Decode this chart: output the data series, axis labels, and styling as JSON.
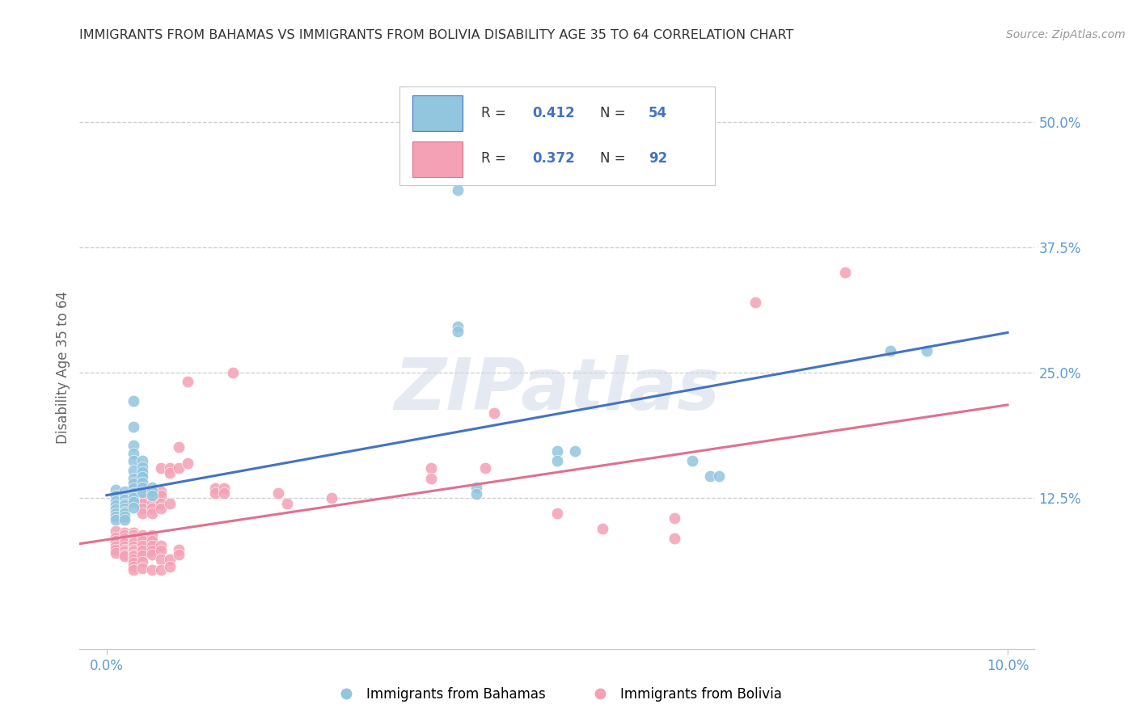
{
  "title": "IMMIGRANTS FROM BAHAMAS VS IMMIGRANTS FROM BOLIVIA DISABILITY AGE 35 TO 64 CORRELATION CHART",
  "source": "Source: ZipAtlas.com",
  "ylabel": "Disability Age 35 to 64",
  "bahamas_color": "#92c5de",
  "bolivia_color": "#f4a0b5",
  "bahamas_line_color": "#4472c4",
  "bolivia_line_color": "#e07090",
  "tick_color": "#5b9bd5",
  "bahamas_R": "0.412",
  "bahamas_N": "54",
  "bolivia_R": "0.372",
  "bolivia_N": "92",
  "bahamas_scatter": [
    [
      0.001,
      0.133
    ],
    [
      0.001,
      0.128
    ],
    [
      0.001,
      0.122
    ],
    [
      0.001,
      0.118
    ],
    [
      0.001,
      0.114
    ],
    [
      0.001,
      0.11
    ],
    [
      0.001,
      0.107
    ],
    [
      0.001,
      0.104
    ],
    [
      0.002,
      0.132
    ],
    [
      0.002,
      0.128
    ],
    [
      0.002,
      0.124
    ],
    [
      0.002,
      0.12
    ],
    [
      0.002,
      0.118
    ],
    [
      0.002,
      0.115
    ],
    [
      0.002,
      0.112
    ],
    [
      0.002,
      0.11
    ],
    [
      0.002,
      0.107
    ],
    [
      0.002,
      0.104
    ],
    [
      0.003,
      0.222
    ],
    [
      0.003,
      0.196
    ],
    [
      0.003,
      0.178
    ],
    [
      0.003,
      0.17
    ],
    [
      0.003,
      0.162
    ],
    [
      0.003,
      0.153
    ],
    [
      0.003,
      0.145
    ],
    [
      0.003,
      0.14
    ],
    [
      0.003,
      0.135
    ],
    [
      0.003,
      0.13
    ],
    [
      0.003,
      0.125
    ],
    [
      0.003,
      0.121
    ],
    [
      0.003,
      0.116
    ],
    [
      0.004,
      0.162
    ],
    [
      0.004,
      0.156
    ],
    [
      0.004,
      0.151
    ],
    [
      0.004,
      0.146
    ],
    [
      0.004,
      0.141
    ],
    [
      0.004,
      0.136
    ],
    [
      0.004,
      0.131
    ],
    [
      0.005,
      0.136
    ],
    [
      0.005,
      0.132
    ],
    [
      0.005,
      0.128
    ],
    [
      0.039,
      0.432
    ],
    [
      0.039,
      0.296
    ],
    [
      0.039,
      0.291
    ],
    [
      0.041,
      0.136
    ],
    [
      0.041,
      0.129
    ],
    [
      0.05,
      0.172
    ],
    [
      0.05,
      0.162
    ],
    [
      0.052,
      0.172
    ],
    [
      0.065,
      0.162
    ],
    [
      0.067,
      0.147
    ],
    [
      0.068,
      0.147
    ],
    [
      0.087,
      0.272
    ],
    [
      0.091,
      0.272
    ]
  ],
  "bolivia_scatter": [
    [
      0.001,
      0.092
    ],
    [
      0.001,
      0.086
    ],
    [
      0.001,
      0.083
    ],
    [
      0.001,
      0.08
    ],
    [
      0.001,
      0.077
    ],
    [
      0.001,
      0.074
    ],
    [
      0.001,
      0.071
    ],
    [
      0.002,
      0.091
    ],
    [
      0.002,
      0.088
    ],
    [
      0.002,
      0.085
    ],
    [
      0.002,
      0.082
    ],
    [
      0.002,
      0.08
    ],
    [
      0.002,
      0.077
    ],
    [
      0.002,
      0.074
    ],
    [
      0.002,
      0.072
    ],
    [
      0.002,
      0.069
    ],
    [
      0.002,
      0.067
    ],
    [
      0.003,
      0.091
    ],
    [
      0.003,
      0.088
    ],
    [
      0.003,
      0.085
    ],
    [
      0.003,
      0.082
    ],
    [
      0.003,
      0.08
    ],
    [
      0.003,
      0.077
    ],
    [
      0.003,
      0.074
    ],
    [
      0.003,
      0.072
    ],
    [
      0.003,
      0.069
    ],
    [
      0.003,
      0.067
    ],
    [
      0.003,
      0.064
    ],
    [
      0.003,
      0.061
    ],
    [
      0.003,
      0.057
    ],
    [
      0.003,
      0.054
    ],
    [
      0.004,
      0.136
    ],
    [
      0.004,
      0.13
    ],
    [
      0.004,
      0.125
    ],
    [
      0.004,
      0.12
    ],
    [
      0.004,
      0.115
    ],
    [
      0.004,
      0.11
    ],
    [
      0.004,
      0.088
    ],
    [
      0.004,
      0.083
    ],
    [
      0.004,
      0.078
    ],
    [
      0.004,
      0.073
    ],
    [
      0.004,
      0.068
    ],
    [
      0.004,
      0.062
    ],
    [
      0.004,
      0.055
    ],
    [
      0.005,
      0.132
    ],
    [
      0.005,
      0.12
    ],
    [
      0.005,
      0.115
    ],
    [
      0.005,
      0.11
    ],
    [
      0.005,
      0.088
    ],
    [
      0.005,
      0.083
    ],
    [
      0.005,
      0.078
    ],
    [
      0.005,
      0.073
    ],
    [
      0.005,
      0.069
    ],
    [
      0.005,
      0.054
    ],
    [
      0.006,
      0.155
    ],
    [
      0.006,
      0.132
    ],
    [
      0.006,
      0.128
    ],
    [
      0.006,
      0.12
    ],
    [
      0.006,
      0.115
    ],
    [
      0.006,
      0.078
    ],
    [
      0.006,
      0.073
    ],
    [
      0.006,
      0.064
    ],
    [
      0.006,
      0.054
    ],
    [
      0.007,
      0.155
    ],
    [
      0.007,
      0.15
    ],
    [
      0.007,
      0.12
    ],
    [
      0.007,
      0.064
    ],
    [
      0.007,
      0.057
    ],
    [
      0.008,
      0.176
    ],
    [
      0.008,
      0.155
    ],
    [
      0.008,
      0.074
    ],
    [
      0.008,
      0.069
    ],
    [
      0.009,
      0.241
    ],
    [
      0.009,
      0.16
    ],
    [
      0.012,
      0.135
    ],
    [
      0.012,
      0.13
    ],
    [
      0.013,
      0.135
    ],
    [
      0.013,
      0.13
    ],
    [
      0.014,
      0.25
    ],
    [
      0.019,
      0.13
    ],
    [
      0.02,
      0.12
    ],
    [
      0.025,
      0.125
    ],
    [
      0.036,
      0.155
    ],
    [
      0.036,
      0.145
    ],
    [
      0.042,
      0.155
    ],
    [
      0.043,
      0.21
    ],
    [
      0.05,
      0.11
    ],
    [
      0.055,
      0.095
    ],
    [
      0.063,
      0.105
    ],
    [
      0.063,
      0.085
    ],
    [
      0.072,
      0.32
    ],
    [
      0.082,
      0.35
    ]
  ],
  "bahamas_line": [
    [
      0.0,
      0.128
    ],
    [
      0.1,
      0.29
    ]
  ],
  "bolivia_line": [
    [
      -0.005,
      0.077
    ],
    [
      0.1,
      0.218
    ]
  ],
  "x_min": -0.003,
  "x_max": 0.103,
  "y_min": -0.025,
  "y_max": 0.535,
  "x_ticks": [
    0.0,
    0.1
  ],
  "x_tick_labels": [
    "0.0%",
    "10.0%"
  ],
  "y_ticks": [
    0.125,
    0.25,
    0.375,
    0.5
  ],
  "y_tick_labels": [
    "12.5%",
    "25.0%",
    "37.5%",
    "50.0%"
  ],
  "grid_color": "#c8c8c8",
  "background_color": "#ffffff",
  "watermark_text": "ZIPatlas",
  "legend_label_bahamas": "Immigrants from Bahamas",
  "legend_label_bolivia": "Immigrants from Bolivia"
}
